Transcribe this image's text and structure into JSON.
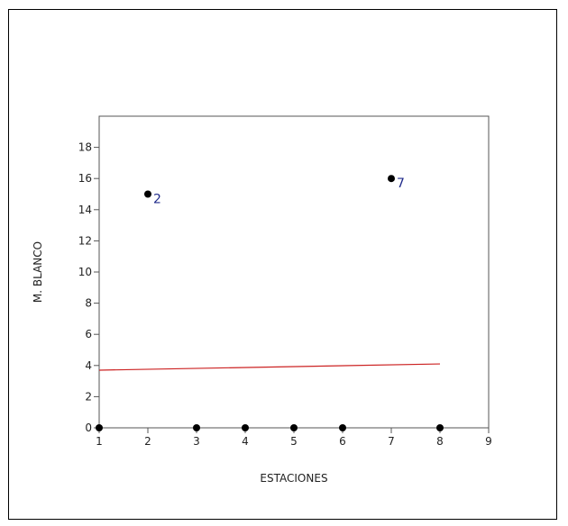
{
  "chart_data": {
    "type": "scatter",
    "xlabel": "ESTACIONES",
    "ylabel": "M. BLANCO",
    "xlim": [
      1,
      9
    ],
    "ylim": [
      0,
      20
    ],
    "xticks": [
      1,
      2,
      3,
      4,
      5,
      6,
      7,
      8,
      9
    ],
    "yticks": [
      0,
      2,
      4,
      6,
      8,
      10,
      12,
      14,
      16,
      18
    ],
    "grid": false,
    "points": [
      {
        "x": 1,
        "y": 0,
        "label": ""
      },
      {
        "x": 2,
        "y": 15,
        "label": "2"
      },
      {
        "x": 3,
        "y": 0,
        "label": ""
      },
      {
        "x": 4,
        "y": 0,
        "label": ""
      },
      {
        "x": 5,
        "y": 0,
        "label": ""
      },
      {
        "x": 6,
        "y": 0,
        "label": ""
      },
      {
        "x": 7,
        "y": 16,
        "label": "7"
      },
      {
        "x": 8,
        "y": 0,
        "label": ""
      }
    ],
    "fit_line": {
      "x": [
        1,
        8
      ],
      "y": [
        3.7,
        4.1
      ],
      "color": "#cc2222"
    },
    "colors": {
      "points": "#000000",
      "point_labels": "#1f2a8a",
      "axes": "#555555"
    }
  }
}
